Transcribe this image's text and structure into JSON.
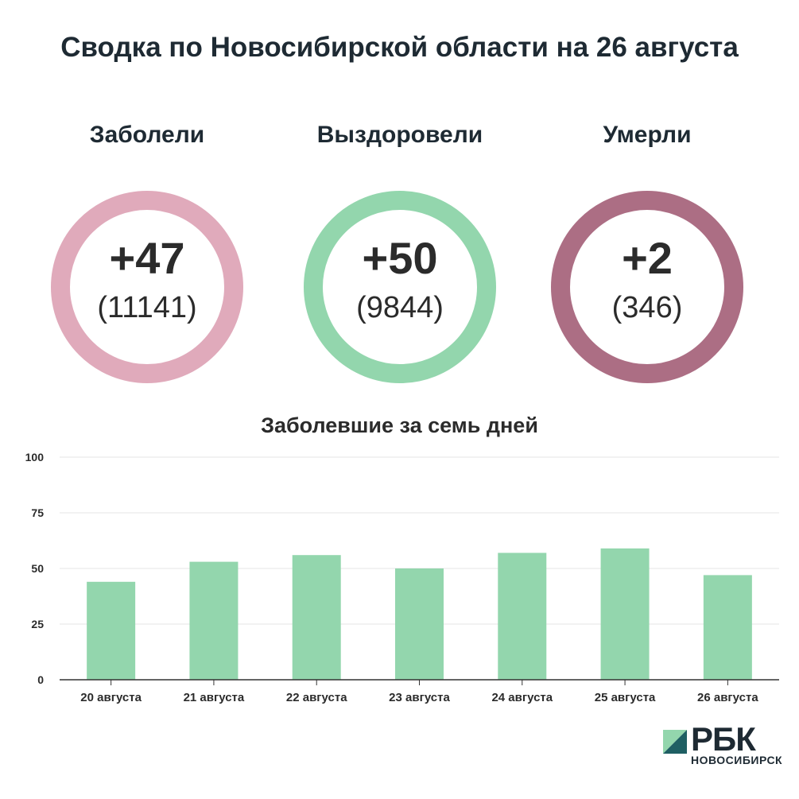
{
  "title": "Сводка по Новосибирской области на 26 августа",
  "stats": [
    {
      "label": "Заболели",
      "delta": "+47",
      "total": "(11141)",
      "color": "#e0aabb"
    },
    {
      "label": "Выздоровели",
      "delta": "+50",
      "total": "(9844)",
      "color": "#93d6ad"
    },
    {
      "label": "Умерли",
      "delta": "+2",
      "total": "(346)",
      "color": "#ac6e84"
    }
  ],
  "chart_data": {
    "type": "bar",
    "title": "Заболевшие за семь дней",
    "categories": [
      "20 августа",
      "21 августа",
      "22 августа",
      "23 августа",
      "24 августа",
      "25 августа",
      "26 августа"
    ],
    "values": [
      44,
      53,
      56,
      50,
      57,
      59,
      47
    ],
    "ylim": [
      0,
      100
    ],
    "yticks": [
      0,
      25,
      50,
      75,
      100
    ],
    "grid": true,
    "bar_color": "#93d6ad"
  },
  "logo": {
    "name": "РБК",
    "sub": "НОВОСИБИРСК",
    "colors": [
      "#93d6ad",
      "#1f5f63"
    ]
  }
}
